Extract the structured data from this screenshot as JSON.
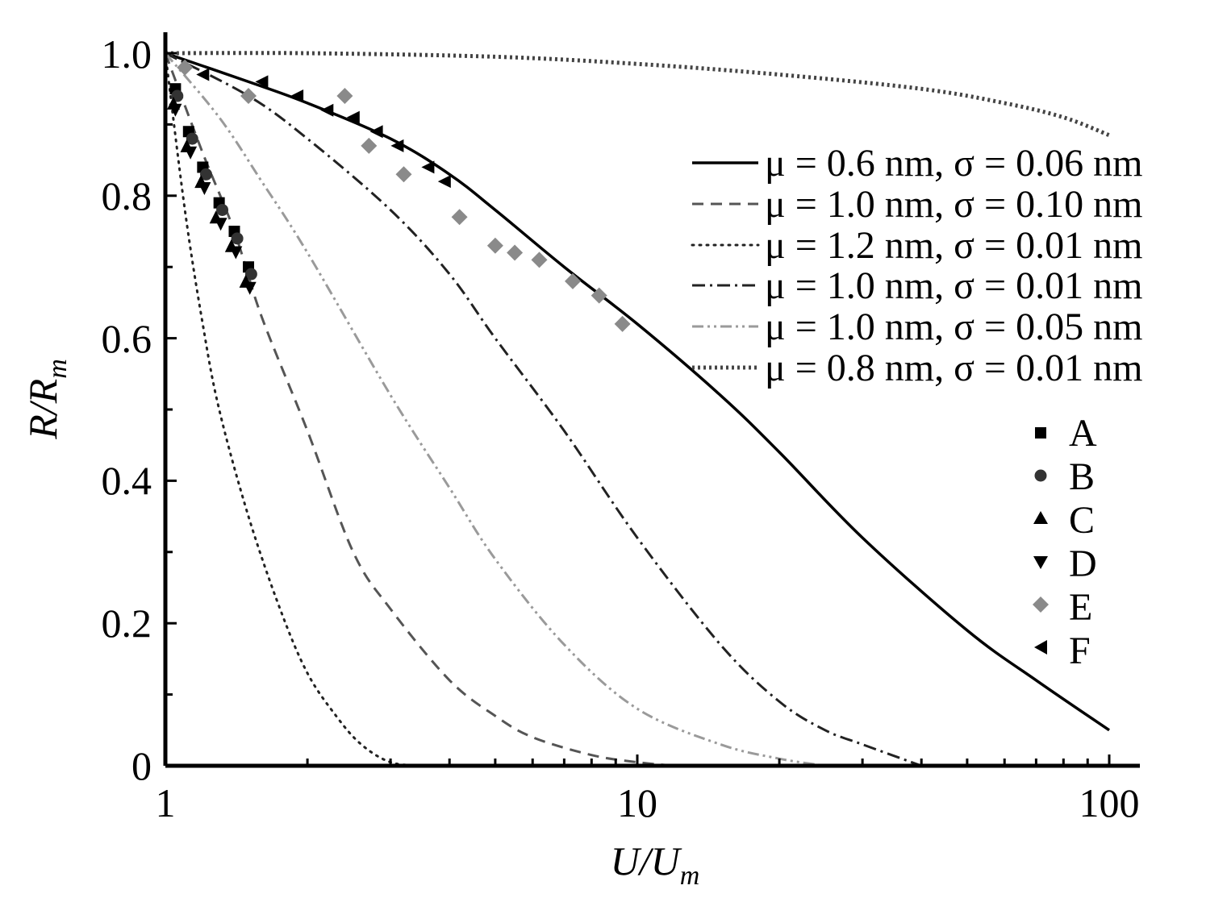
{
  "chart_data": {
    "type": "line",
    "title": "",
    "xlabel": "U/U",
    "xlabel_sub": "m",
    "ylabel": "R/R",
    "ylabel_sub": "m",
    "xscale": "log",
    "xlim": [
      1,
      120
    ],
    "ylim": [
      0,
      1.0
    ],
    "x_tick_labels": [
      "1",
      "10",
      "100"
    ],
    "y_tick_labels": [
      "0",
      "0.2",
      "0.4",
      "0.6",
      "0.8",
      "1.0"
    ],
    "series": [
      {
        "name": "μ = 0.6 nm, σ = 0.06 nm",
        "style": "solid",
        "color": "#000000",
        "x": [
          1,
          1.5,
          2,
          3,
          4,
          5,
          7,
          10,
          15,
          20,
          30,
          50,
          70,
          100
        ],
        "y": [
          1.0,
          0.96,
          0.93,
          0.88,
          0.83,
          0.78,
          0.7,
          0.62,
          0.52,
          0.44,
          0.32,
          0.19,
          0.12,
          0.05
        ]
      },
      {
        "name": "μ = 1.0 nm, σ = 0.10 nm",
        "style": "dashed",
        "color": "#555555",
        "x": [
          1,
          1.2,
          1.4,
          1.6,
          2,
          2.5,
          3,
          4,
          5,
          6,
          8,
          10,
          12
        ],
        "y": [
          1.0,
          0.86,
          0.75,
          0.63,
          0.47,
          0.3,
          0.22,
          0.12,
          0.07,
          0.04,
          0.015,
          0.005,
          0.0
        ]
      },
      {
        "name": "μ = 1.2 nm, σ = 0.01 nm",
        "style": "dotted",
        "color": "#222222",
        "x": [
          1,
          1.1,
          1.2,
          1.3,
          1.5,
          1.75,
          2,
          2.3,
          2.6,
          3,
          3.5
        ],
        "y": [
          1.0,
          0.78,
          0.62,
          0.5,
          0.35,
          0.22,
          0.13,
          0.07,
          0.03,
          0.005,
          0.0
        ]
      },
      {
        "name": "μ = 1.0 nm, σ = 0.01 nm",
        "style": "dashdot",
        "color": "#222222",
        "x": [
          1,
          1.5,
          2,
          3,
          4,
          5,
          7,
          10,
          15,
          20,
          25,
          30,
          40
        ],
        "y": [
          1.0,
          0.94,
          0.88,
          0.78,
          0.69,
          0.6,
          0.47,
          0.32,
          0.17,
          0.09,
          0.05,
          0.03,
          0.0
        ]
      },
      {
        "name": "μ = 1.0 nm, σ = 0.05 nm",
        "style": "dashdotdot",
        "color": "#9a9a9a",
        "x": [
          1,
          1.3,
          1.6,
          2,
          3,
          4,
          5,
          7,
          10,
          15,
          20,
          25
        ],
        "y": [
          1.0,
          0.91,
          0.82,
          0.72,
          0.52,
          0.39,
          0.29,
          0.17,
          0.08,
          0.03,
          0.01,
          0.0
        ]
      },
      {
        "name": "μ = 0.8 nm, σ = 0.01 nm",
        "style": "densedot",
        "color": "#444444",
        "x": [
          1,
          2,
          5,
          10,
          20,
          40,
          60,
          80,
          100
        ],
        "y": [
          1.0,
          1.0,
          0.995,
          0.985,
          0.97,
          0.95,
          0.93,
          0.91,
          0.885
        ]
      }
    ],
    "points": [
      {
        "name": "A",
        "marker": "square",
        "color": "#000000",
        "x": [
          1.05,
          1.12,
          1.2,
          1.3,
          1.4,
          1.5
        ],
        "y": [
          0.95,
          0.89,
          0.84,
          0.79,
          0.75,
          0.7
        ]
      },
      {
        "name": "B",
        "marker": "circle",
        "color": "#333333",
        "x": [
          1.06,
          1.14,
          1.22,
          1.32,
          1.42,
          1.52
        ],
        "y": [
          0.94,
          0.88,
          0.83,
          0.78,
          0.74,
          0.69
        ]
      },
      {
        "name": "C",
        "marker": "triangle-up",
        "color": "#000000",
        "x": [
          1.04,
          1.11,
          1.19,
          1.28,
          1.38,
          1.48
        ],
        "y": [
          0.93,
          0.87,
          0.82,
          0.77,
          0.73,
          0.68
        ]
      },
      {
        "name": "D",
        "marker": "triangle-down",
        "color": "#000000",
        "x": [
          1.05,
          1.13,
          1.21,
          1.31,
          1.41,
          1.51
        ],
        "y": [
          0.92,
          0.86,
          0.81,
          0.76,
          0.72,
          0.67
        ]
      },
      {
        "name": "E",
        "marker": "diamond",
        "color": "#8a8a8a",
        "x": [
          1.1,
          1.5,
          2.4,
          2.7,
          3.2,
          4.2,
          5,
          5.5,
          6.2,
          7.3,
          8.3,
          9.3
        ],
        "y": [
          0.98,
          0.94,
          0.94,
          0.87,
          0.83,
          0.77,
          0.73,
          0.72,
          0.71,
          0.68,
          0.66,
          0.62
        ]
      },
      {
        "name": "F",
        "marker": "triangle-left",
        "color": "#000000",
        "x": [
          1.2,
          1.6,
          1.9,
          2.2,
          2.5,
          2.8,
          3.1,
          3.6,
          3.9
        ],
        "y": [
          0.97,
          0.96,
          0.94,
          0.92,
          0.91,
          0.89,
          0.87,
          0.84,
          0.82
        ]
      }
    ]
  }
}
